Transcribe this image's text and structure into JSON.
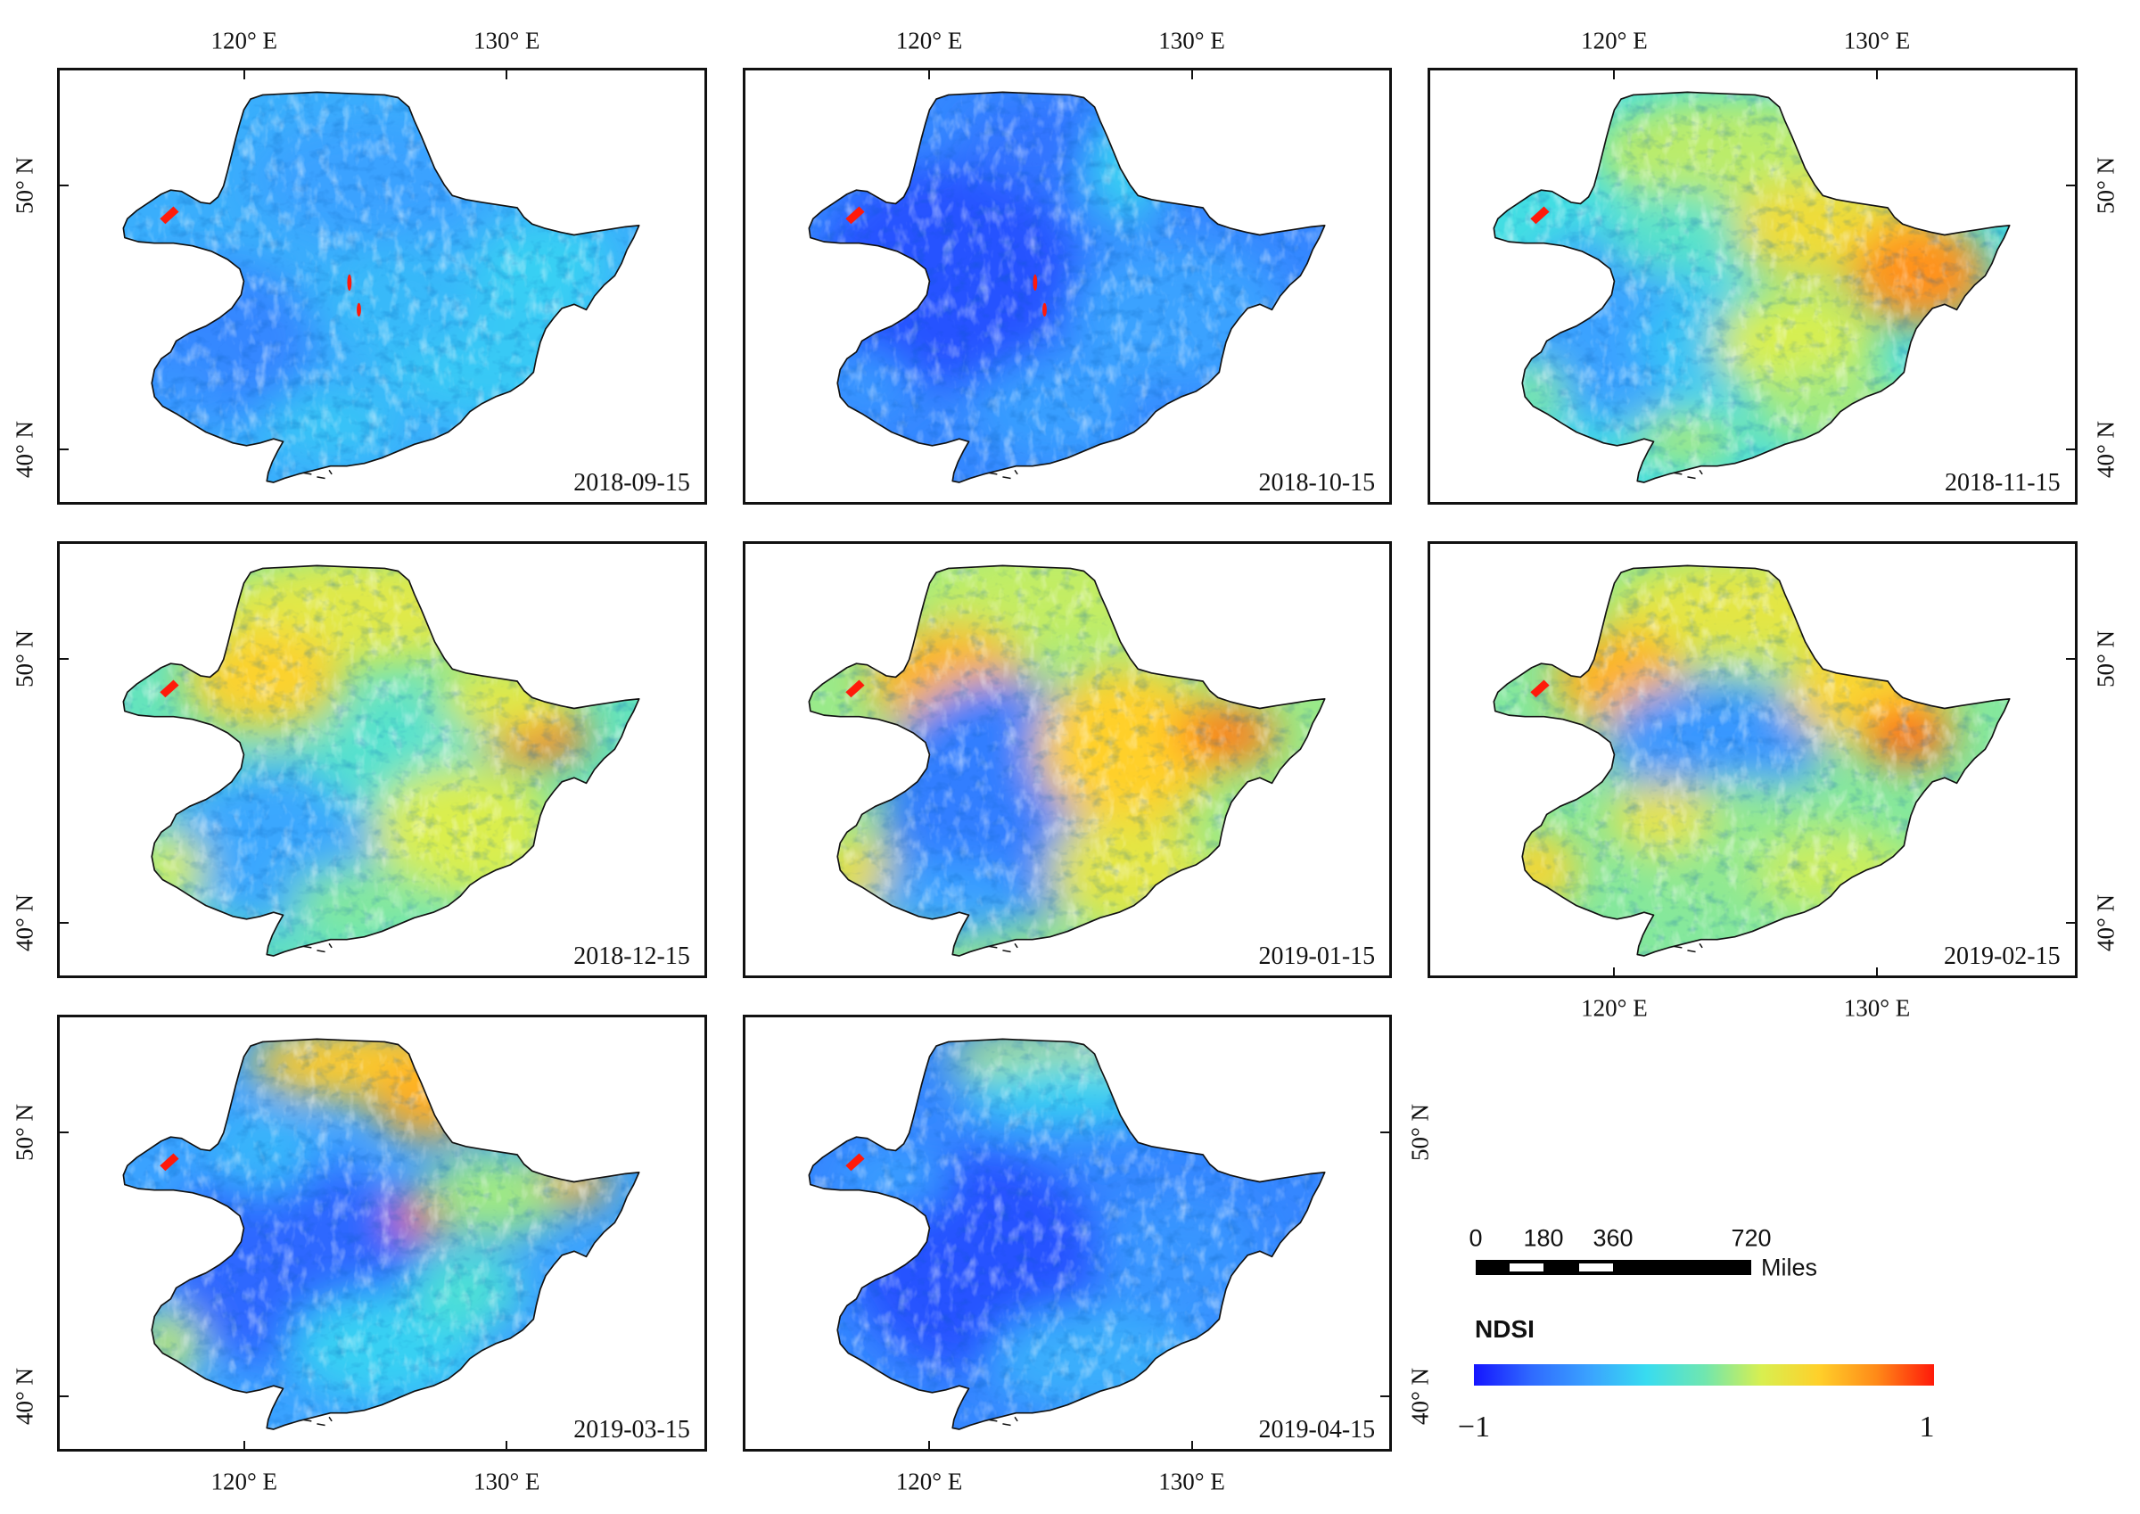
{
  "panels": [
    {
      "date": "2018-09-15"
    },
    {
      "date": "2018-10-15"
    },
    {
      "date": "2018-11-15"
    },
    {
      "date": "2018-12-15"
    },
    {
      "date": "2019-01-15"
    },
    {
      "date": "2019-02-15"
    },
    {
      "date": "2019-03-15"
    },
    {
      "date": "2019-04-15"
    }
  ],
  "axes": {
    "lon_labels": [
      "120° E",
      "130° E"
    ],
    "lat_labels": [
      "50° N",
      "40° N"
    ]
  },
  "scale_bar": {
    "ticks": [
      "0",
      "180",
      "360",
      "720"
    ],
    "unit": "Miles"
  },
  "legend": {
    "title": "NDSI",
    "min_label": "−1",
    "max_label": "1",
    "min": -1,
    "max": 1,
    "colors": [
      "#1515ff",
      "#2f6aff",
      "#3aa2ff",
      "#38dcf0",
      "#6fe6b0",
      "#d8ef50",
      "#ffd02a",
      "#ff8a18",
      "#ff1a0a"
    ]
  }
}
